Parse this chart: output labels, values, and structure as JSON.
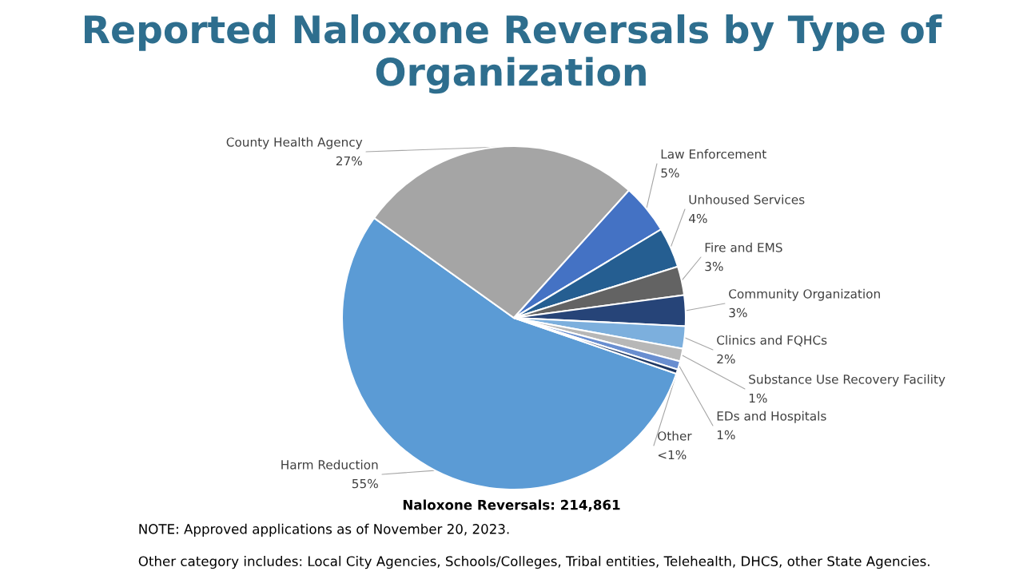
{
  "chart_data": {
    "type": "pie",
    "title": "Reported Naloxone Reversals by Type of Organization",
    "categories": [
      "Harm Reduction",
      "County Health Agency",
      "Law Enforcement",
      "Unhoused Services",
      "Fire and EMS",
      "Community Organization",
      "Clinics and FQHCs",
      "Substance Use Recovery Facility",
      "EDs and Hospitals",
      "Other"
    ],
    "values": [
      54.6,
      26.8,
      4.7,
      3.8,
      2.7,
      2.9,
      2.1,
      1.2,
      0.8,
      0.4
    ],
    "value_labels": [
      "55%",
      "27%",
      "5%",
      "4%",
      "3%",
      "3%",
      "2%",
      "1%",
      "1%",
      "<1%"
    ],
    "colors": [
      "#5b9bd5",
      "#a5a5a5",
      "#4472c4",
      "#255e91",
      "#636363",
      "#264478",
      "#7cafdd",
      "#b7b7b7",
      "#698ed0",
      "#1f3864"
    ],
    "annotations": [
      "Naloxone Reversals: 214,861",
      "NOTE: Approved applications as of November 20, 2023.",
      "Other category includes: Local City Agencies, Schools/Colleges, Tribal entities, Telehealth, DHCS, other State Agencies."
    ]
  }
}
